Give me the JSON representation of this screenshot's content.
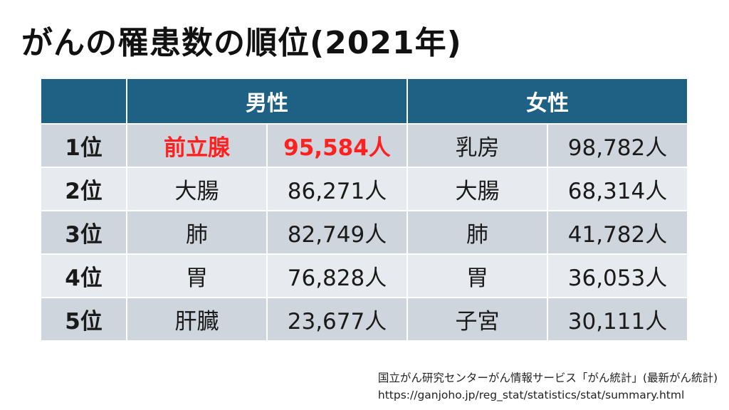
{
  "title": "がんの罹患数の順位(2021年)",
  "table": {
    "headers": [
      "",
      "男性",
      "女性"
    ],
    "rows": [
      {
        "rank": "1位",
        "male_site": "前立腺",
        "male_count": "95,584人",
        "female_site": "乳房",
        "female_count": "98,782人",
        "male_highlight": true
      },
      {
        "rank": "2位",
        "male_site": "大腸",
        "male_count": "86,271人",
        "female_site": "大腸",
        "female_count": "68,314人"
      },
      {
        "rank": "3位",
        "male_site": "肺",
        "male_count": "82,749人",
        "female_site": "肺",
        "female_count": "41,782人"
      },
      {
        "rank": "4位",
        "male_site": "胃",
        "male_count": "76,828人",
        "female_site": "胃",
        "female_count": "36,053人"
      },
      {
        "rank": "5位",
        "male_site": "肝臓",
        "male_count": "23,677人",
        "female_site": "子宮",
        "female_count": "30,111人"
      }
    ],
    "colors": {
      "header_bg": "#1f6184",
      "row_dark": "#cfd5dd",
      "row_light": "#e7eaee",
      "highlight": "#ff2020"
    }
  },
  "source": {
    "line1": "国立がん研究センターがん情報サービス「がん統計」(最新がん統計)",
    "line2": "https://ganjoho.jp/reg_stat/statistics/stat/summary.html"
  }
}
